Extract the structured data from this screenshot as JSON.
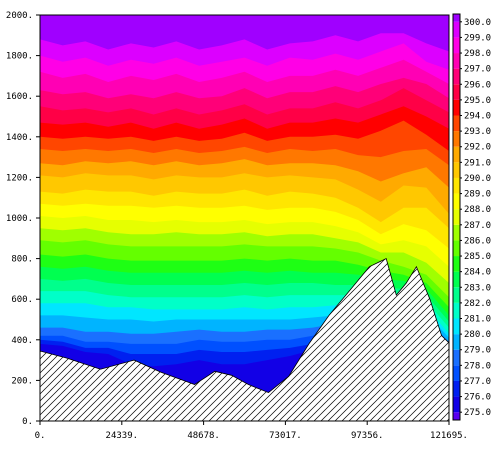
{
  "chart_data": {
    "type": "heatmap",
    "title": "",
    "xlabel": "",
    "ylabel": "",
    "xlim": [
      0,
      121695
    ],
    "ylim": [
      0,
      2000
    ],
    "x_tick_labels": [
      "0.",
      "24339.",
      "48678.",
      "73017.",
      "97356.",
      "121695."
    ],
    "y_tick_labels": [
      "0.",
      "200.",
      "400.",
      "600.",
      "800.",
      "1000.",
      "1200.",
      "1400.",
      "1600.",
      "1800.",
      "2000."
    ],
    "colorbar": {
      "min": 274.5,
      "max": 300.5,
      "labels": [
        "275.0",
        "276.0",
        "277.0",
        "278.0",
        "279.0",
        "280.0",
        "281.0",
        "282.0",
        "283.0",
        "284.0",
        "285.0",
        "286.0",
        "287.0",
        "288.0",
        "289.0",
        "290.0",
        "291.0",
        "292.0",
        "293.0",
        "294.0",
        "295.0",
        "296.0",
        "297.0",
        "298.0",
        "299.0",
        "300.0"
      ],
      "colors": [
        "#5a00f0",
        "#1200e6",
        "#0020f0",
        "#0050ff",
        "#1a70ff",
        "#00b4ff",
        "#00e6ff",
        "#00ffc8",
        "#00ff8c",
        "#00ff50",
        "#1eff14",
        "#64ff00",
        "#a0ff00",
        "#e6ff00",
        "#ffff00",
        "#ffe600",
        "#ffc800",
        "#ffaa00",
        "#ff7800",
        "#ff4600",
        "#ff0000",
        "#ff0046",
        "#ff0078",
        "#ff00b4",
        "#ff00e6",
        "#dc00ff",
        "#a000ff"
      ]
    },
    "terrain": {
      "x": [
        0,
        8000,
        18000,
        28000,
        36000,
        46000,
        52000,
        57000,
        62000,
        68000,
        74000,
        80000,
        86000,
        92000,
        98000,
        103000,
        106000,
        109000,
        112000,
        116000,
        119500,
        121695
      ],
      "z": [
        345,
        310,
        255,
        300,
        240,
        180,
        245,
        225,
        180,
        140,
        220,
        380,
        520,
        640,
        760,
        800,
        620,
        680,
        760,
        600,
        420,
        385
      ]
    },
    "levels": [
      {
        "value": 299.0,
        "z": [
          1880,
          1850,
          1870,
          1830,
          1860,
          1840,
          1870,
          1830,
          1850,
          1880,
          1830,
          1860,
          1870,
          1900,
          1870,
          1910,
          1910,
          1860,
          1820
        ]
      },
      {
        "value": 298.0,
        "z": [
          1800,
          1770,
          1790,
          1750,
          1780,
          1760,
          1790,
          1750,
          1770,
          1790,
          1750,
          1790,
          1780,
          1810,
          1780,
          1820,
          1860,
          1770,
          1730
        ]
      },
      {
        "value": 297.0,
        "z": [
          1720,
          1690,
          1710,
          1670,
          1700,
          1680,
          1710,
          1670,
          1690,
          1720,
          1670,
          1700,
          1700,
          1730,
          1700,
          1740,
          1780,
          1720,
          1660
        ]
      },
      {
        "value": 296.0,
        "z": [
          1630,
          1610,
          1620,
          1590,
          1610,
          1590,
          1620,
          1590,
          1600,
          1640,
          1590,
          1620,
          1620,
          1650,
          1620,
          1660,
          1690,
          1660,
          1590
        ]
      },
      {
        "value": 295.0,
        "z": [
          1550,
          1530,
          1540,
          1520,
          1540,
          1510,
          1540,
          1510,
          1530,
          1560,
          1510,
          1540,
          1540,
          1570,
          1540,
          1580,
          1640,
          1580,
          1520
        ]
      },
      {
        "value": 294.0,
        "z": [
          1470,
          1460,
          1470,
          1450,
          1470,
          1440,
          1470,
          1440,
          1460,
          1490,
          1440,
          1470,
          1470,
          1490,
          1470,
          1510,
          1550,
          1500,
          1440
        ]
      },
      {
        "value": 293.0,
        "z": [
          1400,
          1390,
          1400,
          1390,
          1400,
          1380,
          1400,
          1380,
          1390,
          1420,
          1380,
          1400,
          1400,
          1410,
          1390,
          1430,
          1480,
          1410,
          1330
        ]
      },
      {
        "value": 292.0,
        "z": [
          1340,
          1330,
          1340,
          1330,
          1340,
          1320,
          1340,
          1320,
          1330,
          1350,
          1320,
          1340,
          1330,
          1340,
          1310,
          1300,
          1330,
          1340,
          1260
        ]
      },
      {
        "value": 291.0,
        "z": [
          1270,
          1260,
          1280,
          1270,
          1280,
          1260,
          1280,
          1260,
          1270,
          1290,
          1260,
          1270,
          1270,
          1260,
          1230,
          1180,
          1220,
          1250,
          1150
        ]
      },
      {
        "value": 290.0,
        "z": [
          1210,
          1200,
          1220,
          1210,
          1210,
          1190,
          1210,
          1200,
          1200,
          1220,
          1200,
          1210,
          1200,
          1190,
          1140,
          1080,
          1160,
          1150,
          1020
        ]
      },
      {
        "value": 289.0,
        "z": [
          1130,
          1120,
          1140,
          1130,
          1130,
          1110,
          1130,
          1120,
          1120,
          1140,
          1110,
          1130,
          1120,
          1100,
          1050,
          980,
          1050,
          1050,
          950
        ]
      },
      {
        "value": 288.0,
        "z": [
          1070,
          1060,
          1070,
          1060,
          1060,
          1050,
          1060,
          1050,
          1050,
          1060,
          1040,
          1050,
          1050,
          1030,
          990,
          920,
          970,
          940,
          850
        ]
      },
      {
        "value": 287.0,
        "z": [
          1010,
          1000,
          1010,
          990,
          990,
          980,
          990,
          980,
          980,
          990,
          970,
          980,
          980,
          960,
          930,
          870,
          890,
          860,
          760
        ]
      },
      {
        "value": 286.0,
        "z": [
          950,
          940,
          950,
          930,
          920,
          920,
          930,
          920,
          920,
          930,
          910,
          920,
          920,
          900,
          880,
          830,
          830,
          780,
          680
        ]
      },
      {
        "value": 285.0,
        "z": [
          890,
          880,
          890,
          870,
          860,
          860,
          860,
          860,
          860,
          870,
          860,
          860,
          860,
          850,
          830,
          790,
          760,
          720,
          610
        ]
      },
      {
        "value": 284.0,
        "z": [
          820,
          810,
          820,
          800,
          790,
          790,
          790,
          790,
          790,
          800,
          790,
          800,
          790,
          790,
          770,
          740,
          720,
          680,
          560
        ]
      },
      {
        "value": 283.0,
        "z": [
          760,
          750,
          760,
          740,
          730,
          730,
          730,
          730,
          730,
          740,
          730,
          740,
          730,
          730,
          720,
          700,
          690,
          650,
          520
        ]
      },
      {
        "value": 282.0,
        "z": [
          700,
          690,
          700,
          680,
          670,
          670,
          670,
          670,
          670,
          680,
          670,
          680,
          680,
          670,
          670,
          660,
          650,
          620,
          490
        ]
      },
      {
        "value": 281.0,
        "z": [
          640,
          640,
          640,
          620,
          610,
          610,
          610,
          610,
          610,
          620,
          610,
          620,
          620,
          620,
          620,
          620,
          610,
          590,
          460
        ]
      },
      {
        "value": 280.0,
        "z": [
          580,
          580,
          580,
          560,
          560,
          550,
          550,
          550,
          550,
          560,
          550,
          560,
          560,
          570,
          580,
          580,
          570,
          560,
          430
        ]
      },
      {
        "value": 279.0,
        "z": [
          520,
          520,
          510,
          500,
          500,
          490,
          500,
          500,
          500,
          500,
          500,
          500,
          510,
          520,
          540,
          550,
          540,
          530,
          410
        ]
      },
      {
        "value": 278.0,
        "z": [
          460,
          460,
          440,
          440,
          430,
          430,
          440,
          450,
          440,
          440,
          450,
          450,
          460,
          480,
          500,
          520,
          510,
          500,
          390
        ]
      },
      {
        "value": 277.0,
        "z": [
          420,
          420,
          390,
          390,
          380,
          380,
          380,
          400,
          390,
          390,
          400,
          400,
          420,
          450,
          470,
          480,
          480,
          470,
          380
        ]
      },
      {
        "value": 276.0,
        "z": [
          400,
          390,
          360,
          360,
          330,
          330,
          330,
          350,
          340,
          340,
          350,
          360,
          380,
          420,
          450,
          460,
          460,
          450,
          370
        ]
      },
      {
        "value": 275.0,
        "z": [
          380,
          370,
          340,
          330,
          280,
          270,
          280,
          300,
          280,
          280,
          300,
          320,
          350,
          400,
          430,
          450,
          450,
          440,
          360
        ]
      }
    ]
  }
}
